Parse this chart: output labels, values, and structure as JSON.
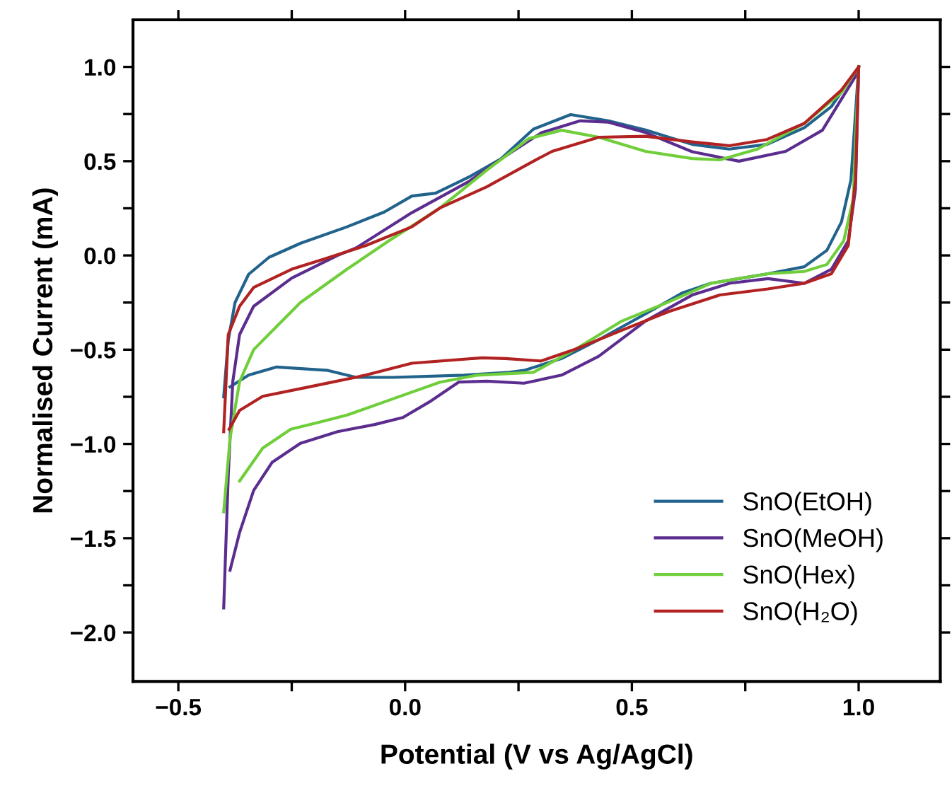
{
  "chart_data": {
    "type": "line",
    "xlabel": "Potential (V vs Ag/AgCl)",
    "ylabel": "Normalised Current (mA)",
    "xlim": [
      -0.6,
      1.18
    ],
    "ylim": [
      -2.26,
      1.25
    ],
    "xticks": [
      {
        "value": -0.5,
        "label": "−0.5"
      },
      {
        "value": -0.25,
        "label": null
      },
      {
        "value": 0,
        "label": "0.0"
      },
      {
        "value": 0.25,
        "label": null
      },
      {
        "value": 0.5,
        "label": "0.5"
      },
      {
        "value": 0.75,
        "label": null
      },
      {
        "value": 1,
        "label": "1.0"
      }
    ],
    "yticks": [
      {
        "value": -2,
        "label": "−2.0"
      },
      {
        "value": -1.75,
        "label": null
      },
      {
        "value": -1.5,
        "label": "−1.5"
      },
      {
        "value": -1.25,
        "label": null
      },
      {
        "value": -1,
        "label": "−1.0"
      },
      {
        "value": -0.75,
        "label": null
      },
      {
        "value": -0.5,
        "label": "−0.5"
      },
      {
        "value": -0.25,
        "label": null
      },
      {
        "value": 0,
        "label": "0.0"
      },
      {
        "value": 0.25,
        "label": null
      },
      {
        "value": 0.5,
        "label": "0.5"
      },
      {
        "value": 0.75,
        "label": null
      },
      {
        "value": 1,
        "label": "1.0"
      }
    ],
    "grid": false,
    "legend": "bottom right",
    "marker": "none",
    "line_style": "solid",
    "series": [
      {
        "name": "SnO(EtOH)",
        "color": "#21638c",
        "x": [
          -0.4,
          -0.39,
          -0.375,
          -0.345,
          -0.3,
          -0.23,
          -0.13,
          -0.046,
          0.015,
          0.067,
          0.14,
          0.21,
          0.283,
          0.365,
          0.448,
          0.53,
          0.633,
          0.715,
          0.798,
          0.88,
          0.94,
          1.0
        ],
        "values": [
          -0.75,
          -0.45,
          -0.25,
          -0.1,
          -0.01,
          0.065,
          0.15,
          0.23,
          0.315,
          0.33,
          0.415,
          0.51,
          0.67,
          0.747,
          0.714,
          0.665,
          0.589,
          0.564,
          0.589,
          0.677,
          0.79,
          1.0
        ]
      },
      {
        "color": "#21638c",
        "x": [
          1.0,
          0.983,
          0.962,
          0.93,
          0.88,
          0.8,
          0.736,
          0.674,
          0.612,
          0.53,
          0.427,
          0.345,
          0.262,
          0.23,
          0.13,
          -0.026,
          -0.108,
          -0.17,
          -0.283,
          -0.345,
          -0.386
        ],
        "values": [
          1.0,
          0.4,
          0.177,
          0.027,
          -0.06,
          -0.097,
          -0.123,
          -0.148,
          -0.198,
          -0.31,
          -0.447,
          -0.547,
          -0.61,
          -0.62,
          -0.635,
          -0.647,
          -0.647,
          -0.61,
          -0.592,
          -0.635,
          -0.697
        ]
      },
      {
        "name": "SnO(MeOH)",
        "color": "#5b2d8e",
        "x": [
          -0.4,
          -0.39,
          -0.38,
          -0.365,
          -0.334,
          -0.25,
          -0.149,
          -0.108,
          0.015,
          0.139,
          0.221,
          0.3,
          0.386,
          0.448,
          0.53,
          0.633,
          0.736,
          0.839,
          0.92,
          0.993,
          1.0
        ],
        "values": [
          -1.87,
          -1.17,
          -0.67,
          -0.42,
          -0.27,
          -0.12,
          0.0,
          0.04,
          0.227,
          0.39,
          0.527,
          0.65,
          0.714,
          0.707,
          0.652,
          0.55,
          0.5,
          0.552,
          0.664,
          0.95,
          1.0
        ]
      },
      {
        "color": "#5b2d8e",
        "x": [
          1.0,
          0.993,
          0.977,
          0.94,
          0.88,
          0.8,
          0.715,
          0.633,
          0.53,
          0.427,
          0.345,
          0.262,
          0.18,
          0.118,
          0.057,
          -0.005,
          -0.067,
          -0.149,
          -0.231,
          -0.293,
          -0.334,
          -0.365,
          -0.386
        ],
        "values": [
          1.0,
          0.35,
          0.077,
          -0.073,
          -0.148,
          -0.123,
          -0.148,
          -0.21,
          -0.348,
          -0.535,
          -0.635,
          -0.678,
          -0.667,
          -0.672,
          -0.772,
          -0.86,
          -0.897,
          -0.935,
          -0.997,
          -1.097,
          -1.247,
          -1.47,
          -1.67
        ]
      },
      {
        "name": "SnO(Hex)",
        "color": "#6fce3a",
        "x": [
          -0.4,
          -0.386,
          -0.365,
          -0.334,
          -0.231,
          -0.128,
          -0.036,
          0.077,
          0.18,
          0.273,
          0.345,
          0.427,
          0.53,
          0.633,
          0.694,
          0.777,
          0.88,
          0.962,
          1.0
        ],
        "values": [
          -1.36,
          -0.97,
          -0.67,
          -0.5,
          -0.25,
          -0.073,
          0.077,
          0.252,
          0.452,
          0.62,
          0.664,
          0.627,
          0.552,
          0.514,
          0.507,
          0.564,
          0.7,
          0.864,
          1.0
        ]
      },
      {
        "color": "#6fce3a",
        "x": [
          1.0,
          0.988,
          0.967,
          0.93,
          0.88,
          0.8,
          0.674,
          0.581,
          0.478,
          0.376,
          0.283,
          0.16,
          0.077,
          -0.026,
          -0.128,
          -0.19,
          -0.252,
          -0.314,
          -0.365
        ],
        "values": [
          1.0,
          0.3,
          0.077,
          -0.048,
          -0.085,
          -0.097,
          -0.148,
          -0.247,
          -0.348,
          -0.497,
          -0.62,
          -0.635,
          -0.672,
          -0.76,
          -0.847,
          -0.885,
          -0.922,
          -1.022,
          -1.197
        ]
      },
      {
        "name": "SnO(H₂O)",
        "color": "#b22222",
        "x": [
          -0.4,
          -0.39,
          -0.365,
          -0.334,
          -0.25,
          -0.18,
          -0.087,
          0.015,
          0.077,
          0.18,
          0.283,
          0.324,
          0.427,
          0.53,
          0.633,
          0.715,
          0.798,
          0.88,
          0.962,
          1.0
        ],
        "values": [
          -0.935,
          -0.42,
          -0.27,
          -0.17,
          -0.073,
          -0.02,
          0.052,
          0.152,
          0.252,
          0.364,
          0.5,
          0.552,
          0.627,
          0.632,
          0.602,
          0.582,
          0.615,
          0.7,
          0.877,
          1.0
        ]
      },
      {
        "color": "#b22222",
        "x": [
          1.0,
          0.993,
          0.977,
          0.94,
          0.88,
          0.8,
          0.694,
          0.581,
          0.478,
          0.376,
          0.3,
          0.221,
          0.17,
          0.015,
          -0.087,
          -0.211,
          -0.314,
          -0.365,
          -0.388
        ],
        "values": [
          1.0,
          0.4,
          0.052,
          -0.097,
          -0.148,
          -0.178,
          -0.21,
          -0.298,
          -0.397,
          -0.497,
          -0.56,
          -0.547,
          -0.543,
          -0.572,
          -0.635,
          -0.697,
          -0.747,
          -0.822,
          -0.922
        ]
      }
    ]
  }
}
